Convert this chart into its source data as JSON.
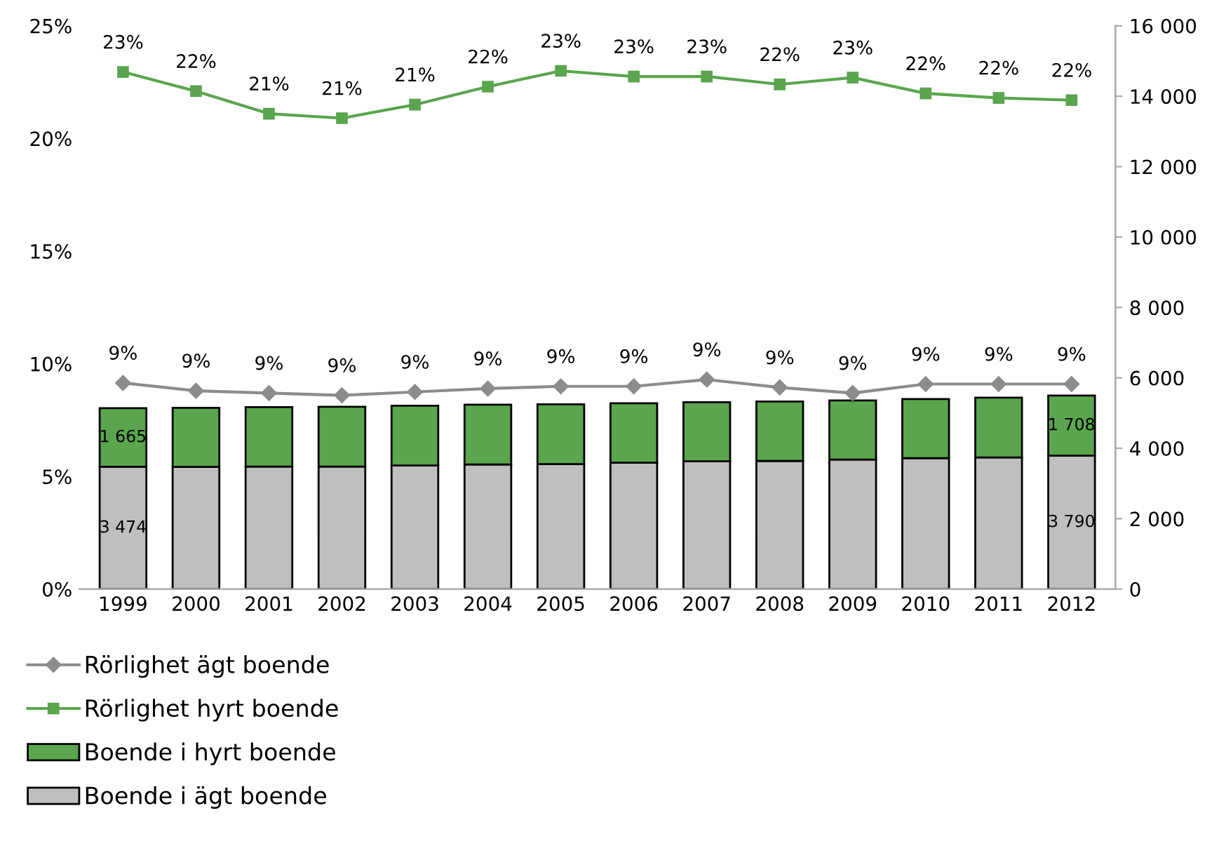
{
  "chart_data": {
    "type": "bar",
    "stacked": true,
    "categories": [
      "1999",
      "2000",
      "2001",
      "2002",
      "2003",
      "2004",
      "2005",
      "2006",
      "2007",
      "2008",
      "2009",
      "2010",
      "2011",
      "2012"
    ],
    "series": [
      {
        "name": "Boende i ägt boende",
        "axis": "y2",
        "color": "#bfbfbf",
        "values": [
          3474,
          3470,
          3480,
          3480,
          3510,
          3540,
          3550,
          3590,
          3630,
          3640,
          3680,
          3720,
          3740,
          3790
        ],
        "value_labels": [
          "3 474",
          null,
          null,
          null,
          null,
          null,
          null,
          null,
          null,
          null,
          null,
          null,
          null,
          "3 790"
        ]
      },
      {
        "name": "Boende i hyrt boende",
        "axis": "y2",
        "color": "#5aa54e",
        "values": [
          1665,
          1680,
          1690,
          1700,
          1700,
          1700,
          1700,
          1690,
          1680,
          1690,
          1680,
          1680,
          1700,
          1708
        ],
        "value_labels": [
          "1 665",
          null,
          null,
          null,
          null,
          null,
          null,
          null,
          null,
          null,
          null,
          null,
          null,
          "1 708"
        ]
      },
      {
        "name": "Rörlighet hyrt boende",
        "type": "line",
        "marker": "square",
        "color": "#5aa54e",
        "values": [
          22.95,
          22.1,
          21.1,
          20.9,
          21.5,
          22.3,
          23.0,
          22.75,
          22.75,
          22.4,
          22.7,
          22.0,
          21.8,
          21.7
        ],
        "value_labels": [
          "23%",
          "22%",
          "21%",
          "21%",
          "21%",
          "22%",
          "23%",
          "23%",
          "23%",
          "22%",
          "23%",
          "22%",
          "22%",
          "22%"
        ]
      },
      {
        "name": "Rörlighet ägt boende",
        "type": "line",
        "marker": "diamond",
        "color": "#8c8c8c",
        "values": [
          9.15,
          8.8,
          8.7,
          8.6,
          8.75,
          8.9,
          9.0,
          9.0,
          9.3,
          8.95,
          8.7,
          9.1,
          9.1,
          9.1
        ],
        "value_labels": [
          "9%",
          "9%",
          "9%",
          "9%",
          "9%",
          "9%",
          "9%",
          "9%",
          "9%",
          "9%",
          "9%",
          "9%",
          "9%",
          "9%"
        ]
      }
    ],
    "ylim": [
      0,
      25
    ],
    "yticks": [
      {
        "value": 0,
        "label": "0%"
      },
      {
        "value": 5,
        "label": "5%"
      },
      {
        "value": 10,
        "label": "10%"
      },
      {
        "value": 15,
        "label": "15%"
      },
      {
        "value": 20,
        "label": "20%"
      },
      {
        "value": 25,
        "label": "25%"
      }
    ],
    "y2lim": [
      0,
      16000
    ],
    "y2ticks": [
      {
        "value": 0,
        "label": "0"
      },
      {
        "value": 2000,
        "label": "2 000"
      },
      {
        "value": 4000,
        "label": "4 000"
      },
      {
        "value": 6000,
        "label": "6 000"
      },
      {
        "value": 8000,
        "label": "8 000"
      },
      {
        "value": 10000,
        "label": "10 000"
      },
      {
        "value": 12000,
        "label": "12 000"
      },
      {
        "value": 14000,
        "label": "14 000"
      },
      {
        "value": 16000,
        "label": "16 000"
      }
    ],
    "grid": false,
    "legend": "bottom"
  }
}
